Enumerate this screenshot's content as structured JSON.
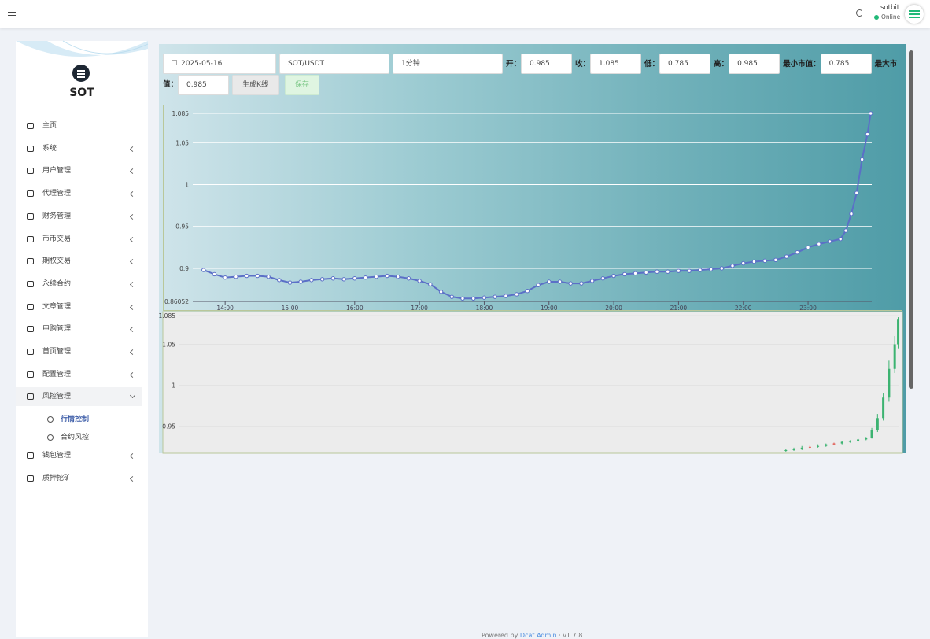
{
  "header": {
    "user": "sotbit",
    "status": "Online"
  },
  "sidebar": {
    "brand": "SOT",
    "menu": [
      {
        "label": "主页"
      },
      {
        "label": "系统",
        "expandable": true
      },
      {
        "label": "用户管理",
        "expandable": true
      },
      {
        "label": "代理管理",
        "expandable": true
      },
      {
        "label": "财务管理",
        "expandable": true
      },
      {
        "label": "币币交易",
        "expandable": true
      },
      {
        "label": "期权交易",
        "expandable": true
      },
      {
        "label": "永续合约",
        "expandable": true
      },
      {
        "label": "文章管理",
        "expandable": true
      },
      {
        "label": "申购管理",
        "expandable": true
      },
      {
        "label": "首页管理",
        "expandable": true
      },
      {
        "label": "配置管理",
        "expandable": true
      },
      {
        "label": "风控管理",
        "expandable": true,
        "open": true,
        "children": [
          {
            "label": "行情控制",
            "active": true
          },
          {
            "label": "合约风控"
          }
        ]
      },
      {
        "label": "钱包管理",
        "expandable": true
      },
      {
        "label": "质押挖矿",
        "expandable": true
      }
    ]
  },
  "form": {
    "date": "2025-05-16",
    "pair": "SOT/USDT",
    "interval": "1分钟",
    "fields": [
      {
        "label": "开：",
        "value": 0.985
      },
      {
        "label": "收：",
        "value": 1.085
      },
      {
        "label": "低：",
        "value": 0.785
      },
      {
        "label": "高：",
        "value": 0.985
      },
      {
        "label": "最小市值：",
        "value": 0.785
      },
      {
        "label": "最大市值：",
        "value": 0.985
      }
    ],
    "buttons": [
      "生成K线",
      "保存"
    ]
  },
  "line_chart": {
    "type": "line",
    "color": "#5b6fc7",
    "grid": true,
    "x": [
      "13:40",
      "13:50",
      "14:00",
      "14:10",
      "14:20",
      "14:30",
      "14:40",
      "14:50",
      "15:00",
      "15:10",
      "15:20",
      "15:30",
      "15:40",
      "15:50",
      "16:00",
      "16:10",
      "16:20",
      "16:30",
      "16:40",
      "16:50",
      "17:00",
      "17:10",
      "17:20",
      "17:30",
      "17:40",
      "17:50",
      "18:00",
      "18:10",
      "18:20",
      "18:30",
      "18:40",
      "18:50",
      "19:00",
      "19:10",
      "19:20",
      "19:30",
      "19:40",
      "19:50",
      "20:00",
      "20:10",
      "20:20",
      "20:30",
      "20:40",
      "20:50",
      "21:00",
      "21:10",
      "21:20",
      "21:30",
      "21:40",
      "21:50",
      "22:00",
      "22:10",
      "22:20",
      "22:30",
      "22:40",
      "22:50",
      "23:00",
      "23:10",
      "23:20",
      "23:30",
      "23:35",
      "23:40",
      "23:45",
      "23:50",
      "23:55",
      "23:58"
    ],
    "values": [
      0.898,
      0.893,
      0.889,
      0.89,
      0.891,
      0.891,
      0.89,
      0.886,
      0.883,
      0.884,
      0.886,
      0.887,
      0.888,
      0.887,
      0.888,
      0.889,
      0.89,
      0.891,
      0.89,
      0.888,
      0.885,
      0.881,
      0.872,
      0.866,
      0.864,
      0.864,
      0.865,
      0.866,
      0.867,
      0.869,
      0.873,
      0.88,
      0.884,
      0.884,
      0.882,
      0.882,
      0.885,
      0.888,
      0.891,
      0.893,
      0.894,
      0.895,
      0.896,
      0.896,
      0.897,
      0.897,
      0.898,
      0.899,
      0.9,
      0.903,
      0.906,
      0.908,
      0.909,
      0.91,
      0.914,
      0.919,
      0.925,
      0.929,
      0.932,
      0.935,
      0.945,
      0.965,
      0.99,
      1.03,
      1.06,
      1.085
    ],
    "xlim": [
      "13:30",
      "23:59"
    ],
    "xticks": [
      "14:00",
      "15:00",
      "16:00",
      "17:00",
      "18:00",
      "19:00",
      "20:00",
      "21:00",
      "22:00",
      "23:00"
    ],
    "ylim": [
      0.86052,
      1.085
    ],
    "yticks": [
      0.86052,
      0.9,
      0.95,
      1,
      1.05,
      1.085
    ]
  },
  "kline_chart": {
    "type": "candlestick",
    "up_color": "#3cb371",
    "down_color": "#e0524a",
    "xlim": [
      "13:30",
      "23:59"
    ],
    "ylim": [
      0.92,
      1.085
    ],
    "yticks": [
      0.95,
      1,
      1.05,
      1.085
    ],
    "candles": [
      {
        "t": "22:20",
        "o": 0.92,
        "c": 0.921,
        "l": 0.919,
        "h": 0.922
      },
      {
        "t": "22:27",
        "o": 0.921,
        "c": 0.922,
        "l": 0.92,
        "h": 0.924
      },
      {
        "t": "22:34",
        "o": 0.922,
        "c": 0.924,
        "l": 0.921,
        "h": 0.926
      },
      {
        "t": "22:41",
        "o": 0.925,
        "c": 0.924,
        "l": 0.923,
        "h": 0.927
      },
      {
        "t": "22:48",
        "o": 0.925,
        "c": 0.926,
        "l": 0.924,
        "h": 0.928
      },
      {
        "t": "22:55",
        "o": 0.926,
        "c": 0.928,
        "l": 0.925,
        "h": 0.929
      },
      {
        "t": "23:02",
        "o": 0.929,
        "c": 0.928,
        "l": 0.927,
        "h": 0.93
      },
      {
        "t": "23:09",
        "o": 0.929,
        "c": 0.931,
        "l": 0.928,
        "h": 0.932
      },
      {
        "t": "23:16",
        "o": 0.931,
        "c": 0.932,
        "l": 0.93,
        "h": 0.933
      },
      {
        "t": "23:23",
        "o": 0.932,
        "c": 0.934,
        "l": 0.931,
        "h": 0.935
      },
      {
        "t": "23:30",
        "o": 0.934,
        "c": 0.936,
        "l": 0.933,
        "h": 0.937
      },
      {
        "t": "23:35",
        "o": 0.936,
        "c": 0.945,
        "l": 0.935,
        "h": 0.948
      },
      {
        "t": "23:40",
        "o": 0.945,
        "c": 0.96,
        "l": 0.943,
        "h": 0.965
      },
      {
        "t": "23:45",
        "o": 0.96,
        "c": 0.985,
        "l": 0.957,
        "h": 0.99
      },
      {
        "t": "23:50",
        "o": 0.985,
        "c": 1.02,
        "l": 0.98,
        "h": 1.03
      },
      {
        "t": "23:55",
        "o": 1.02,
        "c": 1.05,
        "l": 1.015,
        "h": 1.06
      },
      {
        "t": "23:58",
        "o": 1.05,
        "c": 1.08,
        "l": 1.045,
        "h": 1.083
      }
    ]
  },
  "footer": {
    "prefix": "Powered by ",
    "link": "Dcat Admin",
    "suffix": " · v1.7.8"
  }
}
